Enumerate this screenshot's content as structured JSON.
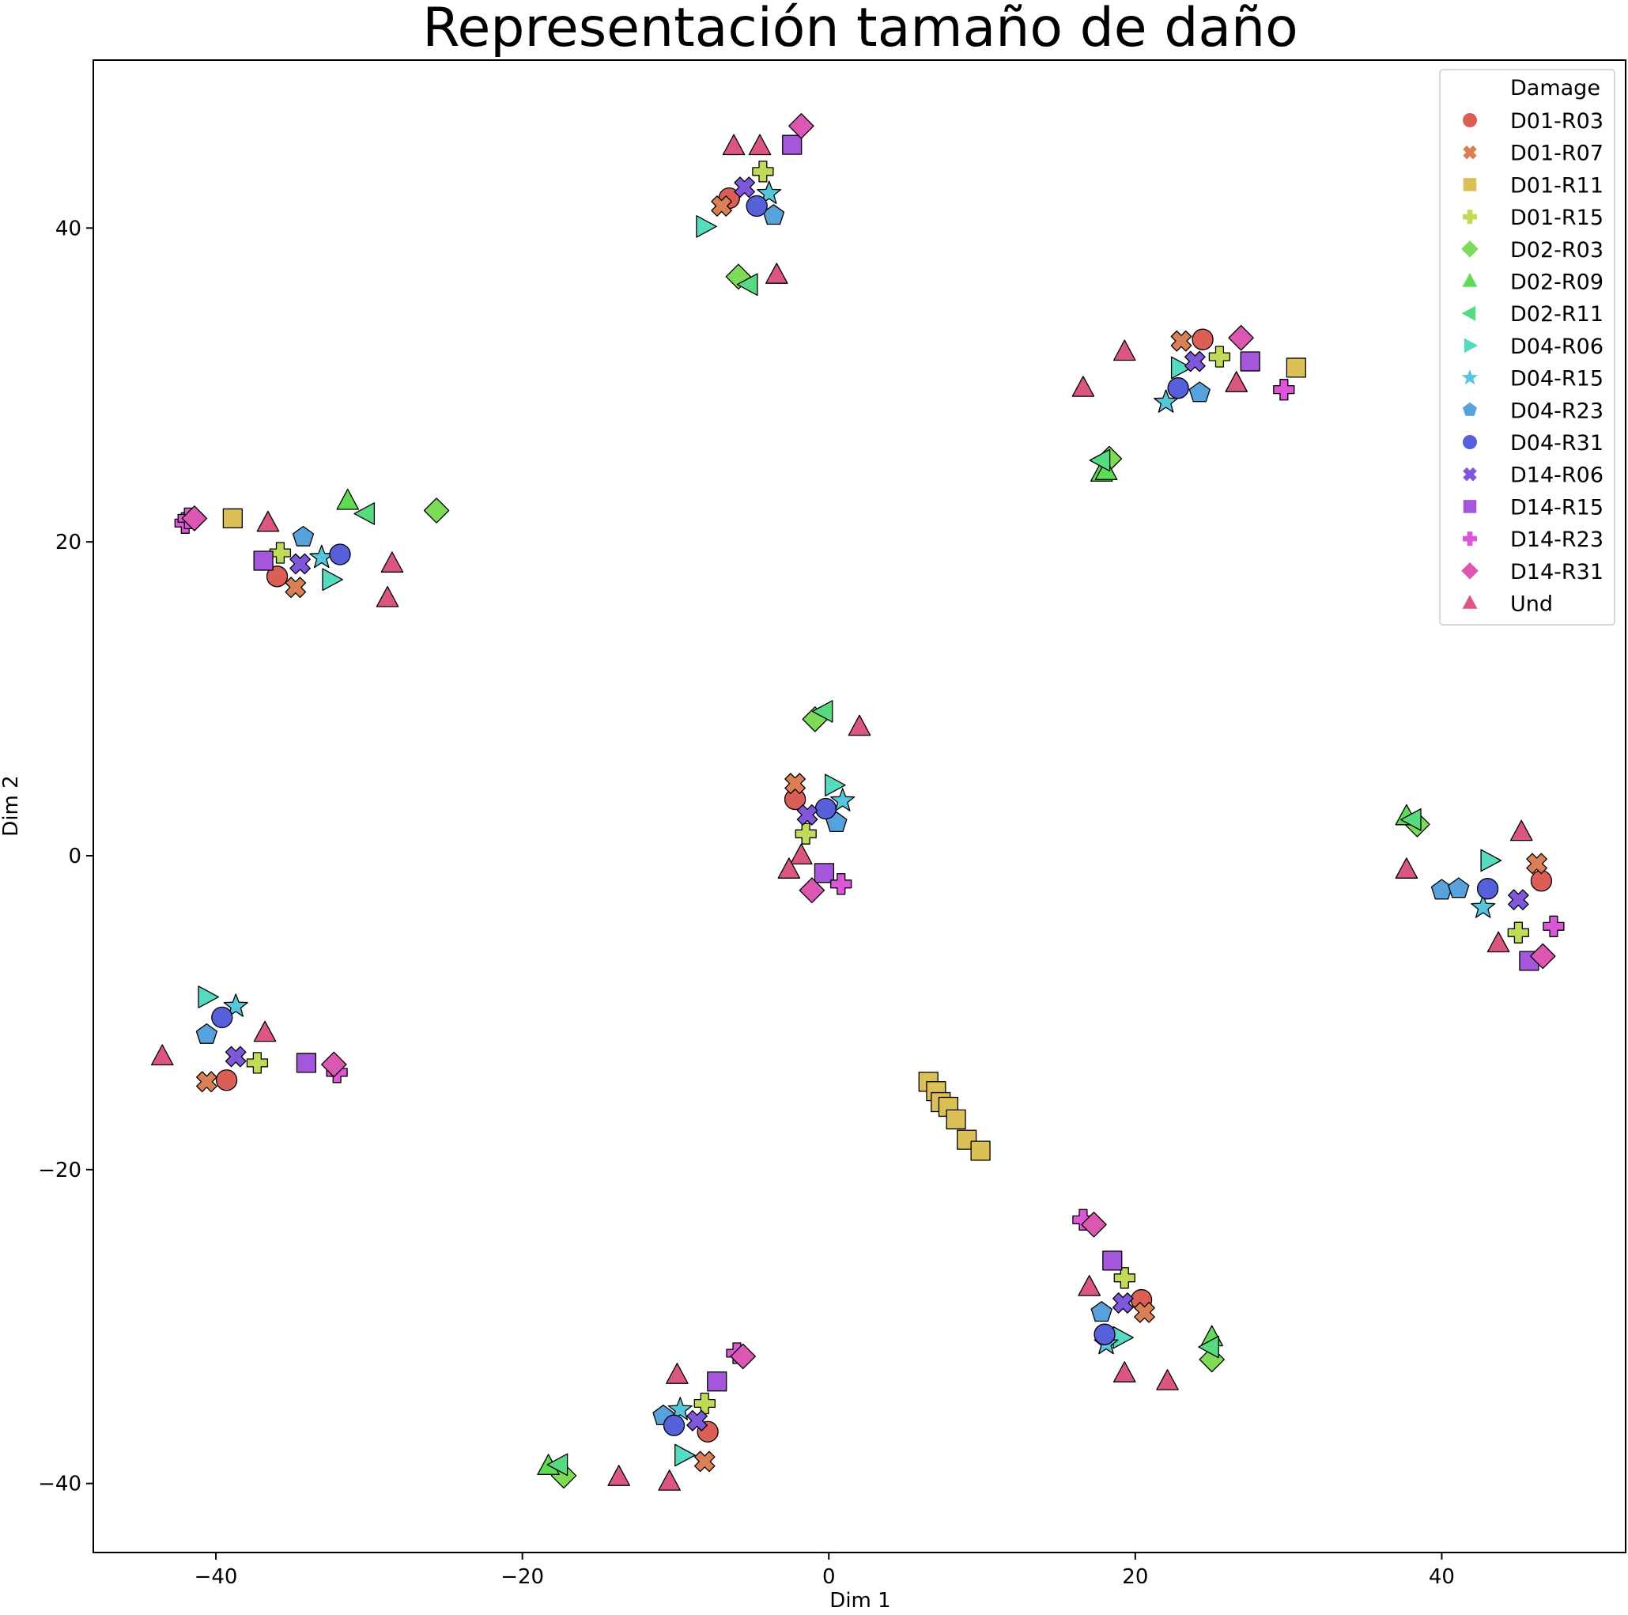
{
  "chart_data": {
    "type": "scatter",
    "title": "Representación tamaño de daño",
    "xlabel": "Dim 1",
    "ylabel": "Dim 2",
    "xlim": [
      -48,
      52
    ],
    "ylim": [
      -44.4,
      50.7
    ],
    "x_ticks": [
      -40,
      -20,
      0,
      20,
      40
    ],
    "y_ticks": [
      -40,
      -20,
      0,
      20,
      40
    ],
    "x_tick_labels": [
      "−40",
      "−20",
      "0",
      "20",
      "40"
    ],
    "y_tick_labels": [
      "−40",
      "−20",
      "0",
      "20",
      "40"
    ],
    "grid": false,
    "legend": {
      "title": "Damage",
      "position": "top-right"
    },
    "series": [
      {
        "name": "D01-R03",
        "color": "#db5f57",
        "marker": "circle",
        "points": [
          [
            -6.5,
            41.9
          ],
          [
            24.4,
            32.9
          ],
          [
            -36,
            17.8
          ],
          [
            -2.2,
            3.6
          ],
          [
            46.5,
            -1.6
          ],
          [
            -39.3,
            -14.3
          ],
          [
            20.4,
            -28.3
          ],
          [
            -7.9,
            -36.7
          ]
        ]
      },
      {
        "name": "D01-R07",
        "color": "#db7f57",
        "marker": "x",
        "points": [
          [
            -7,
            41.4
          ],
          [
            23,
            32.8
          ],
          [
            -34.8,
            17.1
          ],
          [
            -2.2,
            4.6
          ],
          [
            46.2,
            -0.5
          ],
          [
            -40.6,
            -14.4
          ],
          [
            20.6,
            -29.1
          ],
          [
            -8.1,
            -38.6
          ]
        ]
      },
      {
        "name": "D01-R11",
        "color": "#dbbf57",
        "marker": "square",
        "points": [
          [
            30.5,
            31.1
          ],
          [
            -38.9,
            21.5
          ],
          [
            6.5,
            -14.4
          ],
          [
            7,
            -15
          ],
          [
            7.3,
            -15.7
          ],
          [
            7.8,
            -16
          ],
          [
            8.3,
            -16.8
          ],
          [
            9,
            -18.1
          ],
          [
            9.9,
            -18.8
          ]
        ]
      },
      {
        "name": "D01-R15",
        "color": "#c0db57",
        "marker": "plus",
        "points": [
          [
            -4.3,
            43.6
          ],
          [
            25.5,
            31.8
          ],
          [
            -35.8,
            19.3
          ],
          [
            -1.5,
            1.4
          ],
          [
            45,
            -4.9
          ],
          [
            -37.3,
            -13.2
          ],
          [
            19.3,
            -26.9
          ],
          [
            -8.1,
            -34.9
          ]
        ]
      },
      {
        "name": "D02-R03",
        "color": "#7edb57",
        "marker": "diamond",
        "points": [
          [
            -5.9,
            36.9
          ],
          [
            18.3,
            25.3
          ],
          [
            -25.6,
            22
          ],
          [
            -0.9,
            8.7
          ],
          [
            38.4,
            2
          ],
          [
            25,
            -32.1
          ],
          [
            -17.3,
            -39.5
          ]
        ]
      },
      {
        "name": "D02-R09",
        "color": "#5fdb57",
        "marker": "triangle-up",
        "points": [
          [
            17.8,
            24.4
          ],
          [
            18.1,
            24.5
          ],
          [
            -31.4,
            22.6
          ],
          [
            37.7,
            2.5
          ],
          [
            -18.3,
            -38.9
          ],
          [
            25,
            -30.7
          ]
        ]
      },
      {
        "name": "D02-R11",
        "color": "#57db80",
        "marker": "triangle-left",
        "points": [
          [
            -5.2,
            36.4
          ],
          [
            17.8,
            25.2
          ],
          [
            -30.2,
            21.8
          ],
          [
            -0.3,
            9.2
          ],
          [
            38.1,
            2.3
          ],
          [
            24.9,
            -31.3
          ],
          [
            -17.6,
            -38.8
          ]
        ]
      },
      {
        "name": "D04-R06",
        "color": "#57dbc0",
        "marker": "triangle-right",
        "points": [
          [
            -8.1,
            40.1
          ],
          [
            22.9,
            31.1
          ],
          [
            -32.5,
            17.6
          ],
          [
            0.3,
            4.5
          ],
          [
            43.1,
            -0.3
          ],
          [
            -40.6,
            -9
          ],
          [
            19.1,
            -30.7
          ],
          [
            -9.5,
            -38.2
          ]
        ]
      },
      {
        "name": "D04-R15",
        "color": "#57c6db",
        "marker": "star",
        "points": [
          [
            -3.9,
            42.2
          ],
          [
            22,
            28.9
          ],
          [
            -33.1,
            19
          ],
          [
            0.9,
            3.5
          ],
          [
            42.7,
            -3.3
          ],
          [
            -38.7,
            -9.6
          ],
          [
            18.1,
            -31.1
          ],
          [
            -9.7,
            -35.3
          ]
        ]
      },
      {
        "name": "D04-R23",
        "color": "#57a2db",
        "marker": "pentagon",
        "points": [
          [
            -3.6,
            40.8
          ],
          [
            24.2,
            29.5
          ],
          [
            -34.3,
            20.3
          ],
          [
            0.5,
            2.1
          ],
          [
            40,
            -2.2
          ],
          [
            41.1,
            -2.1
          ],
          [
            -40.6,
            -11.4
          ],
          [
            17.8,
            -29.1
          ],
          [
            -10.8,
            -35.7
          ]
        ]
      },
      {
        "name": "D04-R31",
        "color": "#5760db",
        "marker": "circle",
        "points": [
          [
            -4.7,
            41.4
          ],
          [
            22.8,
            29.8
          ],
          [
            -31.9,
            19.2
          ],
          [
            -0.2,
            3
          ],
          [
            43,
            -2.1
          ],
          [
            -39.6,
            -10.3
          ],
          [
            18,
            -30.5
          ],
          [
            -10.1,
            -36.3
          ]
        ]
      },
      {
        "name": "D14-R06",
        "color": "#7e57db",
        "marker": "x",
        "points": [
          [
            -5.5,
            42.6
          ],
          [
            23.9,
            31.5
          ],
          [
            -34.5,
            18.6
          ],
          [
            -1.4,
            2.6
          ],
          [
            45,
            -2.8
          ],
          [
            -38.7,
            -12.8
          ],
          [
            19.2,
            -28.5
          ],
          [
            -8.6,
            -36
          ]
        ]
      },
      {
        "name": "D14-R15",
        "color": "#a557db",
        "marker": "square",
        "points": [
          [
            -2.4,
            45.3
          ],
          [
            27.5,
            31.5
          ],
          [
            -36.9,
            18.8
          ],
          [
            -0.3,
            -1.1
          ],
          [
            45.7,
            -6.7
          ],
          [
            -34.1,
            -13.2
          ],
          [
            18.5,
            -25.8
          ],
          [
            -7.3,
            -33.5
          ]
        ]
      },
      {
        "name": "D14-R23",
        "color": "#db57d8",
        "marker": "plus",
        "points": [
          [
            29.7,
            29.7
          ],
          [
            -42,
            21.2
          ],
          [
            -41.8,
            21.5
          ],
          [
            0.8,
            -1.8
          ],
          [
            47.3,
            -4.5
          ],
          [
            -32.1,
            -13.8
          ],
          [
            16.6,
            -23.2
          ],
          [
            -6,
            -31.7
          ]
        ]
      },
      {
        "name": "D14-R31",
        "color": "#db57b2",
        "marker": "diamond",
        "points": [
          [
            -1.8,
            46.5
          ],
          [
            26.9,
            33
          ],
          [
            -41.4,
            21.5
          ],
          [
            -1.1,
            -2.2
          ],
          [
            46.6,
            -6.4
          ],
          [
            -32.3,
            -13.3
          ],
          [
            17.3,
            -23.5
          ],
          [
            -5.6,
            -31.9
          ]
        ]
      },
      {
        "name": "Und",
        "color": "#db5780",
        "marker": "triangle-up",
        "points": [
          [
            -6.2,
            45.2
          ],
          [
            -4.5,
            45.2
          ],
          [
            -3.4,
            37
          ],
          [
            19.3,
            32.1
          ],
          [
            16.6,
            29.8
          ],
          [
            26.6,
            30.1
          ],
          [
            -36.6,
            21.2
          ],
          [
            -28.5,
            18.6
          ],
          [
            -28.8,
            16.4
          ],
          [
            2,
            8.2
          ],
          [
            -1.8,
            0
          ],
          [
            -2.6,
            -0.9
          ],
          [
            45.2,
            1.5
          ],
          [
            37.7,
            -0.9
          ],
          [
            43.7,
            -5.6
          ],
          [
            -43.5,
            -12.8
          ],
          [
            -36.8,
            -11.3
          ],
          [
            17,
            -27.5
          ],
          [
            19.3,
            -33
          ],
          [
            22.1,
            -33.5
          ],
          [
            -9.9,
            -33.1
          ],
          [
            -13.7,
            -39.6
          ],
          [
            -10.4,
            -39.9
          ]
        ]
      }
    ]
  }
}
